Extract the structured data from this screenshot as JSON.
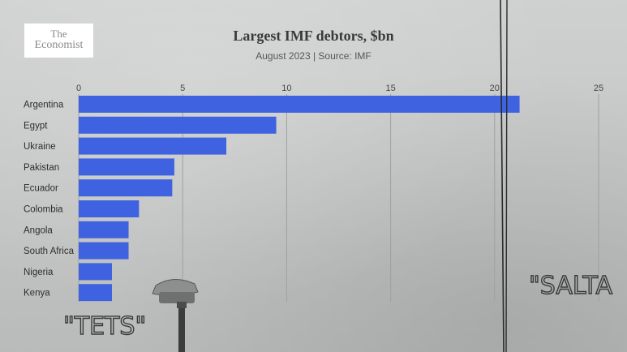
{
  "brand": {
    "line1": "The",
    "line2": "Economist"
  },
  "graffiti": {
    "left": "\"TETS\"",
    "right": "\"SALTA"
  },
  "colors": {
    "bar": "#3f63e0",
    "grid": "#9fa1a0",
    "background": "#c9cbca"
  },
  "chart_data": {
    "type": "bar",
    "orientation": "horizontal",
    "title": "Largest IMF debtors, $bn",
    "subtitle": "August 2023 | Source: IMF",
    "categories": [
      "Argentina",
      "Egypt",
      "Ukraine",
      "Pakistan",
      "Ecuador",
      "Colombia",
      "Angola",
      "South Africa",
      "Nigeria",
      "Kenya"
    ],
    "values": [
      21.2,
      9.5,
      7.1,
      4.6,
      4.5,
      2.9,
      2.4,
      2.4,
      1.6,
      1.6
    ],
    "xticks": [
      0,
      5,
      10,
      15,
      20,
      25
    ],
    "xlim": [
      0,
      25
    ],
    "grid": true,
    "axis_position": "top"
  }
}
